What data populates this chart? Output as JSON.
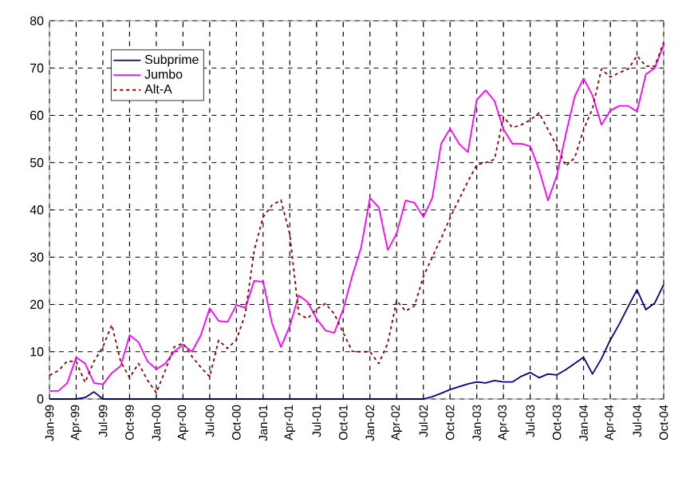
{
  "chart_data": {
    "type": "line",
    "x": [
      "1999-01",
      "1999-02",
      "1999-03",
      "1999-04",
      "1999-05",
      "1999-06",
      "1999-07",
      "1999-08",
      "1999-09",
      "1999-10",
      "1999-11",
      "1999-12",
      "2000-01",
      "2000-02",
      "2000-03",
      "2000-04",
      "2000-05",
      "2000-06",
      "2000-07",
      "2000-08",
      "2000-09",
      "2000-10",
      "2000-11",
      "2000-12",
      "2001-01",
      "2001-02",
      "2001-03",
      "2001-04",
      "2001-05",
      "2001-06",
      "2001-07",
      "2001-08",
      "2001-09",
      "2001-10",
      "2001-11",
      "2001-12",
      "2002-01",
      "2002-02",
      "2002-03",
      "2002-04",
      "2002-05",
      "2002-06",
      "2002-07",
      "2002-08",
      "2002-09",
      "2002-10",
      "2002-11",
      "2002-12",
      "2003-01",
      "2003-02",
      "2003-03",
      "2003-04",
      "2003-05",
      "2003-06",
      "2003-07",
      "2003-08",
      "2003-09",
      "2003-10",
      "2003-11",
      "2003-12",
      "2004-01",
      "2004-02",
      "2004-03",
      "2004-04",
      "2004-05",
      "2004-06",
      "2004-07",
      "2004-08",
      "2004-09",
      "2004-10"
    ],
    "series": [
      {
        "name": "Subprime",
        "color": "#000080",
        "line_style": "solid",
        "values": [
          0,
          0,
          0,
          0,
          0.3,
          1.5,
          0,
          0,
          0,
          0,
          0,
          0,
          0,
          0,
          0,
          0,
          0,
          0,
          0,
          0,
          0,
          0,
          0,
          0,
          0,
          0,
          0,
          0,
          0,
          0,
          0,
          0,
          0,
          0,
          0,
          0,
          0,
          0,
          0,
          0,
          0,
          0,
          0,
          0.5,
          1.2,
          2,
          2.6,
          3.2,
          3.6,
          3.4,
          3.9,
          3.6,
          3.6,
          4.8,
          5.6,
          4.5,
          5.3,
          5.1,
          6.2,
          7.5,
          8.8,
          5.3,
          8.5,
          12.5,
          15.8,
          19.5,
          23.1,
          18.9,
          20.3,
          24.2
        ]
      },
      {
        "name": "Jumbo",
        "color": "#ff00ff",
        "line_style": "solid",
        "values": [
          1.7,
          1.7,
          3.4,
          8.8,
          7.5,
          3.4,
          3.1,
          5.5,
          7,
          13.5,
          12,
          8,
          6.3,
          7.5,
          10,
          11.5,
          10,
          13.5,
          19.2,
          16.5,
          16.3,
          19.9,
          19.3,
          25,
          24.8,
          16,
          11,
          15.5,
          21.9,
          20.5,
          17,
          14.5,
          14,
          19,
          26,
          32,
          42.5,
          40.5,
          31.5,
          35,
          42,
          41.5,
          38.5,
          42.5,
          54,
          57.2,
          54,
          52.2,
          63.3,
          65.3,
          63,
          57,
          54,
          54,
          53.5,
          48.5,
          42,
          47.3,
          56,
          64,
          67.8,
          64.2,
          58,
          61,
          62,
          62,
          60.8,
          68.7,
          70,
          75
        ]
      },
      {
        "name": "Alt-A",
        "color": "#8b0000",
        "line_style": "dotted",
        "values": [
          5,
          6,
          8,
          7.9,
          3.5,
          8,
          11,
          15.7,
          7.9,
          4.5,
          7.5,
          4,
          1.3,
          6,
          11,
          11.8,
          9,
          6.7,
          4.7,
          12.4,
          10.7,
          12.5,
          18,
          31.5,
          38.5,
          41,
          42.1,
          34.8,
          18,
          17,
          19,
          20.2,
          18,
          14,
          10.1,
          10,
          10,
          7.5,
          11.8,
          20.8,
          18.6,
          19.7,
          25.9,
          30,
          34,
          38.3,
          42.2,
          46,
          49.5,
          50,
          50.7,
          59.7,
          57.4,
          58,
          59,
          60.5,
          57,
          53.5,
          49.3,
          51,
          57,
          61.4,
          69.8,
          68.1,
          69,
          69.8,
          72.6,
          70.4,
          70.4,
          75.4
        ]
      }
    ],
    "xlim": [
      "1999-01",
      "2004-10"
    ],
    "xticks": [
      {
        "value": "1999-01",
        "label": "Jan-99"
      },
      {
        "value": "1999-04",
        "label": "Apr-99"
      },
      {
        "value": "1999-07",
        "label": "Jul-99"
      },
      {
        "value": "1999-10",
        "label": "Oct-99"
      },
      {
        "value": "2000-01",
        "label": "Jan-00"
      },
      {
        "value": "2000-04",
        "label": "Apr-00"
      },
      {
        "value": "2000-07",
        "label": "Jul-00"
      },
      {
        "value": "2000-10",
        "label": "Oct-00"
      },
      {
        "value": "2001-01",
        "label": "Jan-01"
      },
      {
        "value": "2001-04",
        "label": "Apr-01"
      },
      {
        "value": "2001-07",
        "label": "Jul-01"
      },
      {
        "value": "2001-10",
        "label": "Oct-01"
      },
      {
        "value": "2002-01",
        "label": "Jan-02"
      },
      {
        "value": "2002-04",
        "label": "Apr-02"
      },
      {
        "value": "2002-07",
        "label": "Jul-02"
      },
      {
        "value": "2002-10",
        "label": "Oct-02"
      },
      {
        "value": "2003-01",
        "label": "Jan-03"
      },
      {
        "value": "2003-04",
        "label": "Apr-03"
      },
      {
        "value": "2003-07",
        "label": "Jul-03"
      },
      {
        "value": "2003-10",
        "label": "Oct-03"
      },
      {
        "value": "2004-01",
        "label": "Jan-04"
      },
      {
        "value": "2004-04",
        "label": "Apr-04"
      },
      {
        "value": "2004-07",
        "label": "Jul-04"
      },
      {
        "value": "2004-10",
        "label": "Oct-04"
      }
    ],
    "ylim": [
      0,
      80
    ],
    "yticks": [
      0,
      10,
      20,
      30,
      40,
      50,
      60,
      70,
      80
    ],
    "grid": true,
    "legend": "top left",
    "marker": "none"
  }
}
